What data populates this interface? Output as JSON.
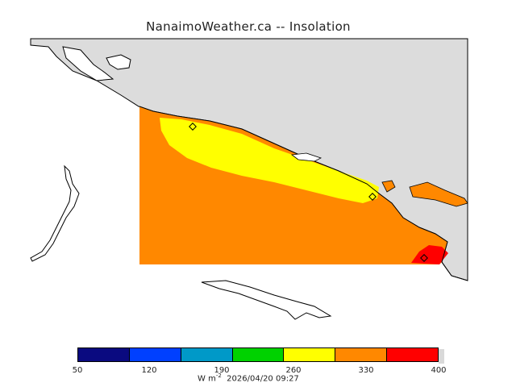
{
  "title": "NanaimoWeather.ca -- Insolation",
  "colorbar": {
    "ticks": [
      "50",
      "120",
      "190",
      "260",
      "330",
      "400"
    ],
    "segment_colors": [
      "#0a0a80",
      "#0040ff",
      "#0099c8",
      "#00d200",
      "#ffff00",
      "#ff8800",
      "#ff0000"
    ],
    "units_label": "W m",
    "units_exponent": "-2",
    "timestamp": "2026/04/20 09:27"
  },
  "colors": {
    "land": "#dcdcdc",
    "coast_line": "#000000",
    "field_orange": "#ff8800",
    "field_yellow": "#ffff00",
    "field_red": "#ff0000"
  }
}
